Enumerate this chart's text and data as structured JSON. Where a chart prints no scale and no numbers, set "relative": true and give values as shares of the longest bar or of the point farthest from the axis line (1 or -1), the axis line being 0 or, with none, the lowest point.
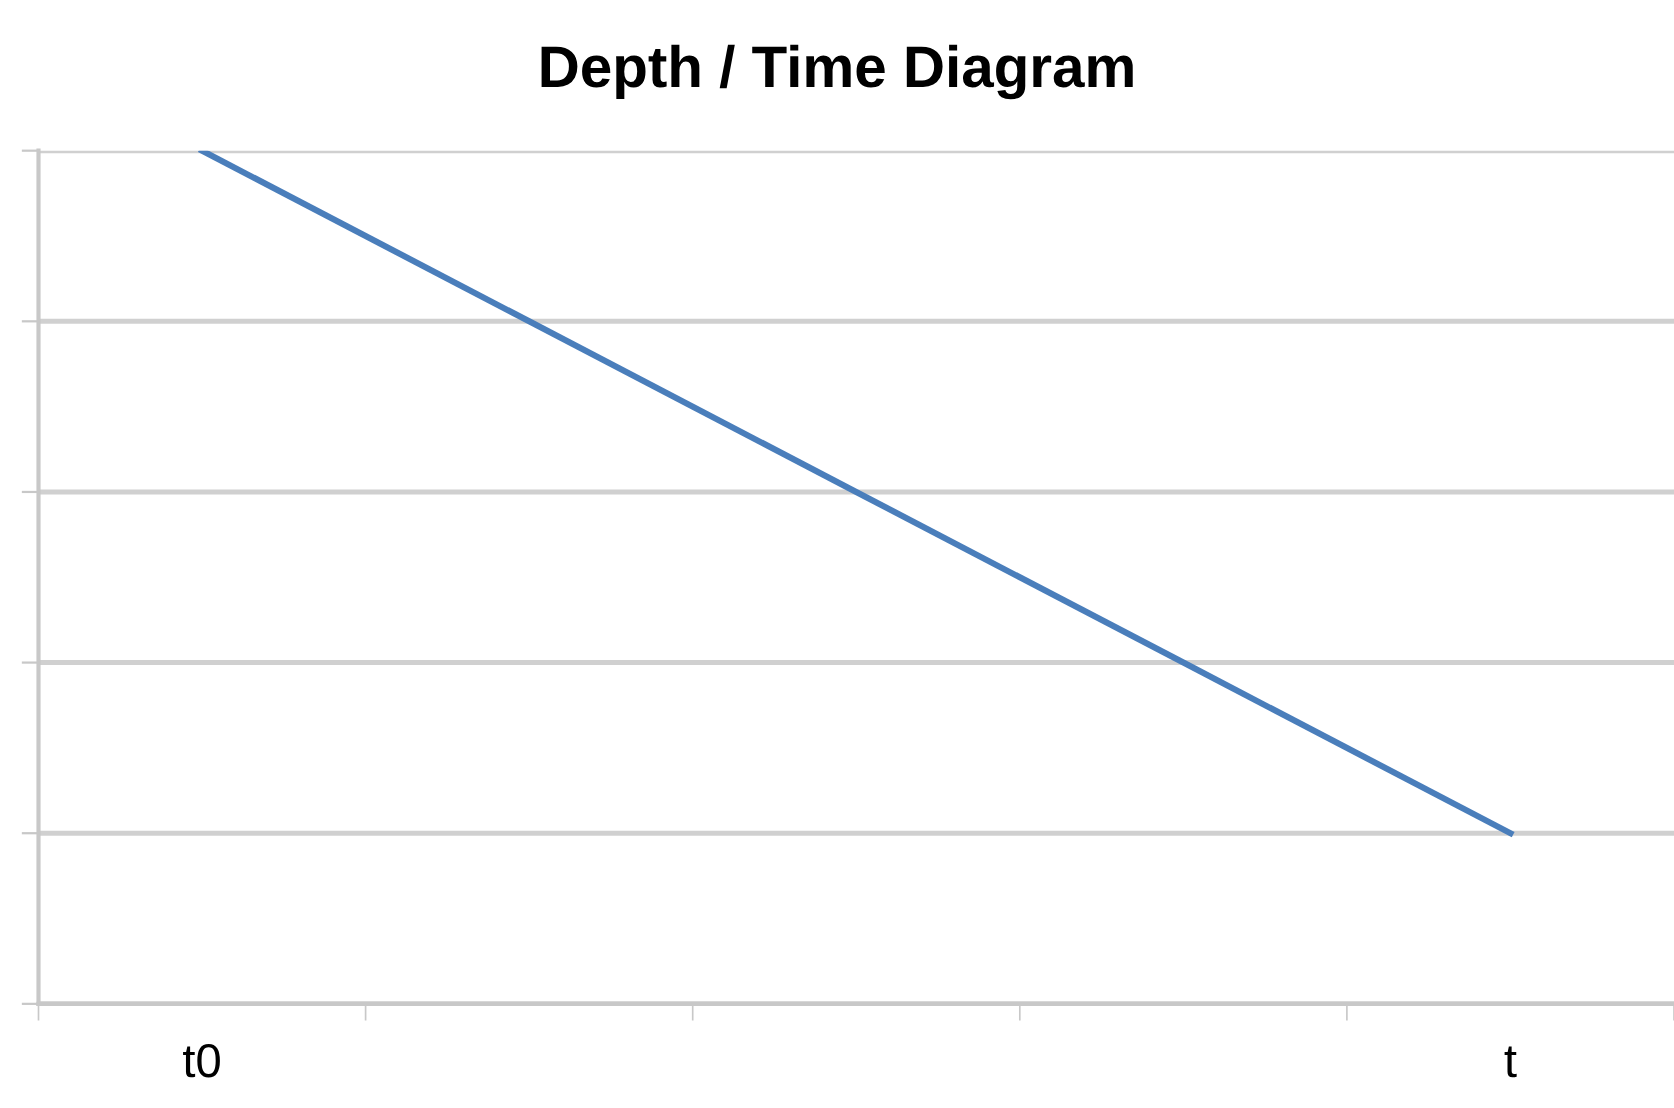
{
  "chart_data": {
    "type": "line",
    "title": "Depth / Time Diagram",
    "categories": [
      "t0",
      null,
      null,
      null,
      "t"
    ],
    "series": [
      {
        "color": "#4a7ebb",
        "values": [
          1,
          0.8,
          0.6,
          0.4,
          0.2
        ]
      }
    ],
    "relative": true,
    "grid": "y",
    "tick_labels": "x",
    "marker": "none",
    "line_style": "solid"
  }
}
